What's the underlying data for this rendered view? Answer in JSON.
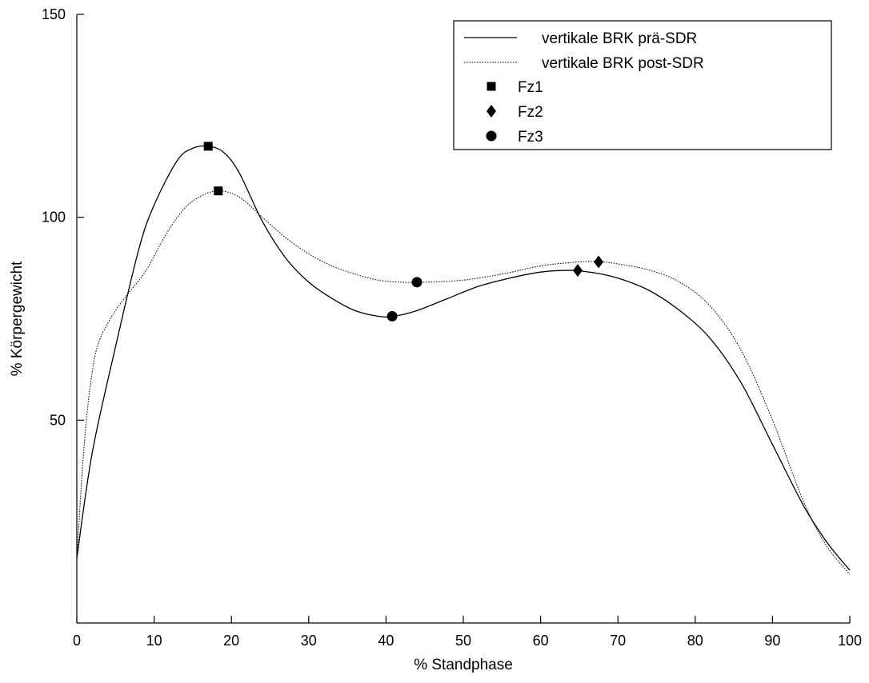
{
  "chart_data": {
    "type": "line",
    "title": "",
    "xlabel": "% Standphase",
    "ylabel": "% Körpergewicht",
    "xlim": [
      0,
      100
    ],
    "ylim": [
      0,
      150
    ],
    "xticks": [
      0,
      10,
      20,
      30,
      40,
      50,
      60,
      70,
      80,
      90,
      100
    ],
    "yticks": [
      50,
      100,
      150
    ],
    "grid": false,
    "legend_position": "top-right",
    "series": [
      {
        "name": "vertikale BRK prä-SDR",
        "style": "solid",
        "x": [
          0,
          2,
          5,
          8,
          10,
          13,
          15,
          17,
          19,
          21,
          24,
          27,
          30,
          33,
          36,
          39,
          41,
          44,
          48,
          52,
          56,
          60,
          64,
          67,
          70,
          74,
          78,
          82,
          86,
          90,
          94,
          97,
          100
        ],
        "y": [
          16,
          42,
          68,
          92,
          103,
          114,
          117,
          117.5,
          116,
          111,
          99,
          90,
          84,
          80,
          77,
          75.6,
          75.6,
          77,
          80,
          83,
          85,
          86.5,
          86.9,
          86.3,
          85,
          82,
          77,
          70,
          59,
          44,
          29,
          20,
          13
        ]
      },
      {
        "name": "vertikale BRK post-SDR",
        "style": "dotted",
        "x": [
          0,
          1,
          2,
          3,
          5,
          7,
          9,
          11,
          13,
          15,
          18,
          21,
          24,
          27,
          30,
          33,
          36,
          39,
          42,
          45,
          50,
          55,
          60,
          65,
          68,
          70,
          74,
          78,
          82,
          86,
          90,
          94,
          97,
          100
        ],
        "y": [
          16,
          45,
          62,
          70,
          77,
          82,
          87,
          94,
          100,
          104,
          106.5,
          105,
          100,
          95,
          91,
          88,
          86,
          84.5,
          84,
          84,
          84.5,
          86,
          88,
          89,
          89,
          88.5,
          87,
          84,
          78,
          67,
          50,
          30,
          19,
          12
        ]
      }
    ],
    "markers": [
      {
        "name": "Fz1",
        "symbol": "square",
        "points": [
          [
            17,
            117.5
          ],
          [
            18.3,
            106.5
          ]
        ]
      },
      {
        "name": "Fz2",
        "symbol": "diamond",
        "points": [
          [
            64.8,
            86.9
          ],
          [
            67.5,
            89
          ]
        ]
      },
      {
        "name": "Fz3",
        "symbol": "circle",
        "points": [
          [
            40.8,
            75.6
          ],
          [
            44,
            84
          ]
        ]
      }
    ]
  }
}
